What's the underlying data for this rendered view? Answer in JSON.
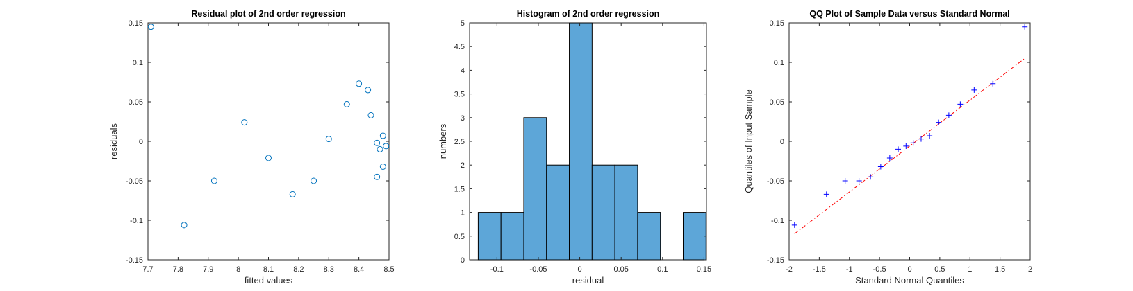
{
  "chart_data": [
    {
      "type": "scatter",
      "title": "Residual plot of 2nd order regression",
      "xlabel": "fitted values",
      "ylabel": "residuals",
      "xlim": [
        7.7,
        8.5
      ],
      "ylim": [
        -0.15,
        0.15
      ],
      "xticks": [
        "7.7",
        "7.8",
        "7.9",
        "8",
        "8.1",
        "8.2",
        "8.3",
        "8.4",
        "8.5"
      ],
      "yticks": [
        "-0.15",
        "-0.1",
        "-0.05",
        "0",
        "0.05",
        "0.1",
        "0.15"
      ],
      "marker": "circle",
      "color": "#0072BD",
      "grid": false,
      "x": [
        7.71,
        7.82,
        7.92,
        8.02,
        8.1,
        8.18,
        8.25,
        8.3,
        8.36,
        8.4,
        8.43,
        8.44,
        8.46,
        8.46,
        8.47,
        8.48,
        8.48,
        8.49
      ],
      "y": [
        0.145,
        -0.106,
        -0.05,
        0.024,
        -0.021,
        -0.067,
        -0.05,
        0.003,
        0.047,
        0.073,
        0.065,
        0.033,
        -0.002,
        -0.045,
        -0.01,
        -0.032,
        0.007,
        -0.006
      ]
    },
    {
      "type": "bar",
      "title": "Histogram of 2nd order regression",
      "xlabel": "residual",
      "ylabel": "numbers",
      "xlim": [
        -0.133,
        0.153
      ],
      "ylim": [
        0,
        5
      ],
      "xticks": [
        "-0.1",
        "-0.05",
        "0",
        "0.05",
        "0.1",
        "0.15"
      ],
      "yticks": [
        "0",
        "0.5",
        "1",
        "1.5",
        "2",
        "2.5",
        "3",
        "3.5",
        "4",
        "4.5",
        "5"
      ],
      "color": "#5DA6D8",
      "grid": false,
      "bin_edges": [
        -0.1226,
        -0.0951,
        -0.0676,
        -0.0401,
        -0.0126,
        0.0149,
        0.0424,
        0.0699,
        0.0974,
        0.1249,
        0.1524
      ],
      "values": [
        1,
        1,
        3,
        2,
        5,
        2,
        2,
        1,
        0,
        1
      ]
    },
    {
      "type": "scatter",
      "title": "QQ Plot of Sample Data versus Standard Normal",
      "xlabel": "Standard Normal Quantiles",
      "ylabel": "Quantiles of Input Sample",
      "xlim": [
        -2,
        2
      ],
      "ylim": [
        -0.15,
        0.15
      ],
      "xticks": [
        "-2",
        "-1.5",
        "-1",
        "-0.5",
        "0",
        "0.5",
        "1",
        "1.5",
        "2"
      ],
      "yticks": [
        "-0.15",
        "-0.1",
        "-0.05",
        "0",
        "0.05",
        "0.1",
        "0.15"
      ],
      "marker": "plus",
      "color": "#0000FF",
      "line_color": "#FF0000",
      "grid": false,
      "x": [
        -1.91,
        -1.38,
        -1.07,
        -0.84,
        -0.65,
        -0.48,
        -0.33,
        -0.19,
        -0.06,
        0.06,
        0.19,
        0.33,
        0.48,
        0.65,
        0.84,
        1.07,
        1.38,
        1.91
      ],
      "y": [
        -0.106,
        -0.067,
        -0.05,
        -0.05,
        -0.045,
        -0.032,
        -0.021,
        -0.01,
        -0.006,
        -0.002,
        0.003,
        0.007,
        0.024,
        0.033,
        0.047,
        0.065,
        0.073,
        0.145
      ],
      "reference_line": {
        "x": [
          -1.91,
          1.91
        ],
        "y": [
          -0.117,
          0.105
        ]
      }
    }
  ]
}
